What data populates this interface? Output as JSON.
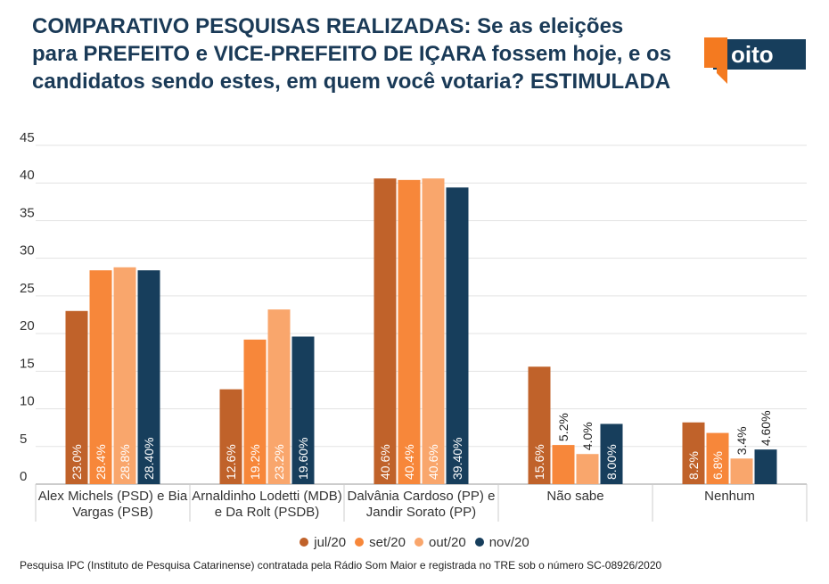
{
  "header": {
    "title": "COMPARATIVO PESQUISAS REALIZADAS: Se as eleições para PREFEITO e VICE-PREFEITO DE IÇARA fossem hoje, e os candidatos sendo estes, em quem você votaria? ESTIMULADA",
    "logo_text": "4oito"
  },
  "colors": {
    "title": "#1a3a57",
    "logo_orange": "#f47a20",
    "logo_navy": "#173e5c"
  },
  "chart_data": {
    "type": "bar",
    "title": "",
    "xlabel": "",
    "ylabel": "",
    "ylim": [
      0,
      45
    ],
    "yticks": [
      0,
      5,
      10,
      15,
      20,
      25,
      30,
      35,
      40,
      45
    ],
    "grid": true,
    "legend_position": "bottom",
    "categories": [
      "Alex Michels (PSD) e Bia Vargas (PSB)",
      "Arnaldinho Lodetti (MDB) e Da Rolt (PSDB)",
      "Dalvânia Cardoso (PP) e Jandir Sorato (PP)",
      "Não sabe",
      "Nenhum"
    ],
    "series": [
      {
        "name": "jul/20",
        "color": "#c0622a",
        "values": [
          23.0,
          12.6,
          40.6,
          15.6,
          8.2
        ],
        "labels": [
          "23.0%",
          "12.6%",
          "40.6%",
          "15.6%",
          "8.2%"
        ]
      },
      {
        "name": "set/20",
        "color": "#f7873a",
        "values": [
          28.4,
          19.2,
          40.4,
          5.2,
          6.8
        ],
        "labels": [
          "28.4%",
          "19.2%",
          "40.4%",
          "5.2%",
          "6.8%"
        ]
      },
      {
        "name": "out/20",
        "color": "#f9a66c",
        "values": [
          28.8,
          23.2,
          40.6,
          4.0,
          3.4
        ],
        "labels": [
          "28.8%",
          "23.2%",
          "40.6%",
          "4.0%",
          "3.4%"
        ]
      },
      {
        "name": "nov/20",
        "color": "#173e5c",
        "values": [
          28.4,
          19.6,
          39.4,
          8.0,
          4.6
        ],
        "labels": [
          "28.40%",
          "19.60%",
          "39.40%",
          "8.00%",
          "4.60%"
        ]
      }
    ]
  },
  "footnote": "Pesquisa IPC (Instituto de Pesquisa Catarinense) contratada pela Rádio Som Maior e registrada no TRE sob o número SC-08926/2020"
}
